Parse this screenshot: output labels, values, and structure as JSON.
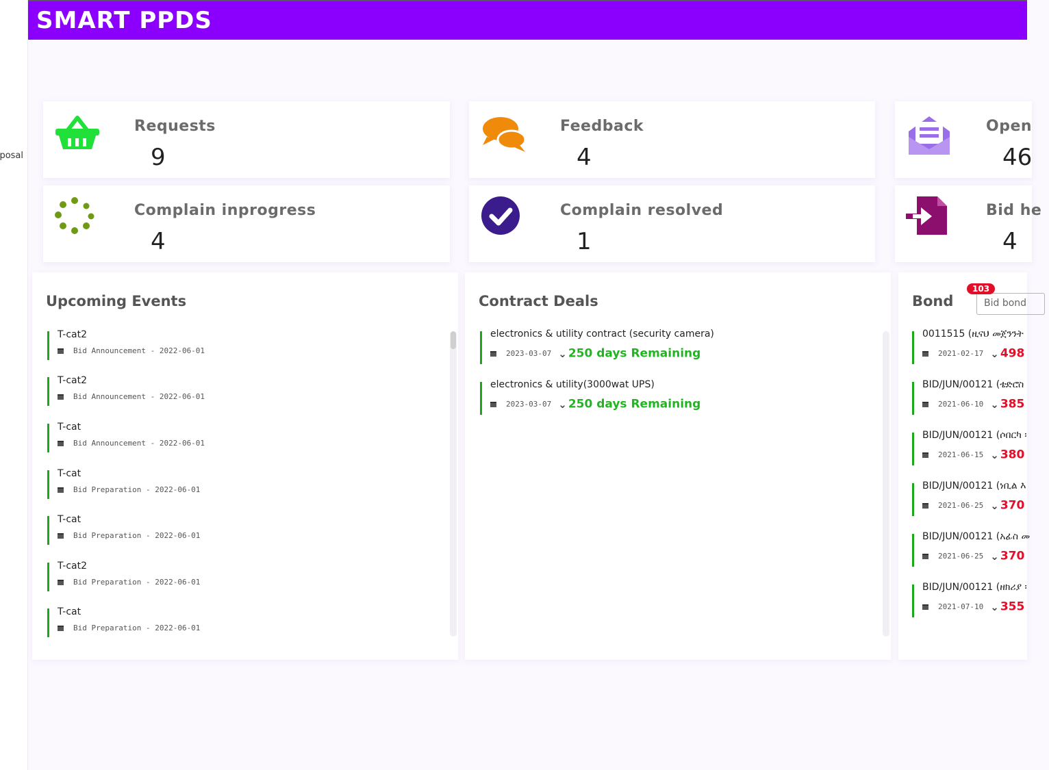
{
  "sidebar": {
    "fragment": "posal"
  },
  "header": {
    "brand": "SMART PPDS"
  },
  "cards": [
    {
      "label": "Requests",
      "value": "9",
      "icon": "basket-icon",
      "color": "#22e03a"
    },
    {
      "label": "Feedback",
      "value": "4",
      "icon": "chat-bubbles-icon",
      "color": "#f08a0a"
    },
    {
      "label": "Open",
      "value": "46",
      "icon": "open-envelope-icon",
      "color": "#9a6ee8"
    },
    {
      "label": "Complain inprogress",
      "value": "4",
      "icon": "spinner-icon",
      "color": "#6e9a14"
    },
    {
      "label": "Complain resolved",
      "value": "1",
      "icon": "check-circle-icon",
      "color": "#3a1c8c"
    },
    {
      "label": "Bid he",
      "value": "4",
      "icon": "file-import-icon",
      "color": "#8c0f6e"
    }
  ],
  "events": {
    "title": "Upcoming Events",
    "items": [
      {
        "name": "T-cat2",
        "meta": "Bid Announcement - 2022-06-01"
      },
      {
        "name": "T-cat2",
        "meta": "Bid Announcement - 2022-06-01"
      },
      {
        "name": "T-cat",
        "meta": "Bid Announcement - 2022-06-01"
      },
      {
        "name": "T-cat",
        "meta": "Bid Preparation - 2022-06-01"
      },
      {
        "name": "T-cat",
        "meta": "Bid Preparation - 2022-06-01"
      },
      {
        "name": "T-cat2",
        "meta": "Bid Preparation - 2022-06-01"
      },
      {
        "name": "T-cat",
        "meta": "Bid Preparation - 2022-06-01"
      }
    ]
  },
  "deals": {
    "title": "Contract Deals",
    "items": [
      {
        "name": "electronics & utility contract (security camera)",
        "date": "2023-03-07",
        "remaining": "250 days Remaining"
      },
      {
        "name": "electronics & utility(3000wat UPS)",
        "date": "2023-03-07",
        "remaining": "250 days Remaining"
      }
    ]
  },
  "bond": {
    "title": "Bond",
    "badge": "103",
    "select_value": "Bid bond",
    "items": [
      {
        "name": "0011515 (ዚናህ መጀንንት",
        "date": "2021-02-17",
        "value": "498"
      },
      {
        "name": "BID/JUN/00121 (ቴድሮስ",
        "date": "2021-06-10",
        "value": "385"
      },
      {
        "name": "BID/JUN/00121 (ሶበርካ ፡",
        "date": "2021-06-15",
        "value": "380"
      },
      {
        "name": "BID/JUN/00121 (ነቢል እ",
        "date": "2021-06-25",
        "value": "370"
      },
      {
        "name": "BID/JUN/00121 (አፊስ መ",
        "date": "2021-06-25",
        "value": "370"
      },
      {
        "name": "BID/JUN/00121 (ዘክሪያ ፡",
        "date": "2021-07-10",
        "value": "355"
      }
    ]
  }
}
